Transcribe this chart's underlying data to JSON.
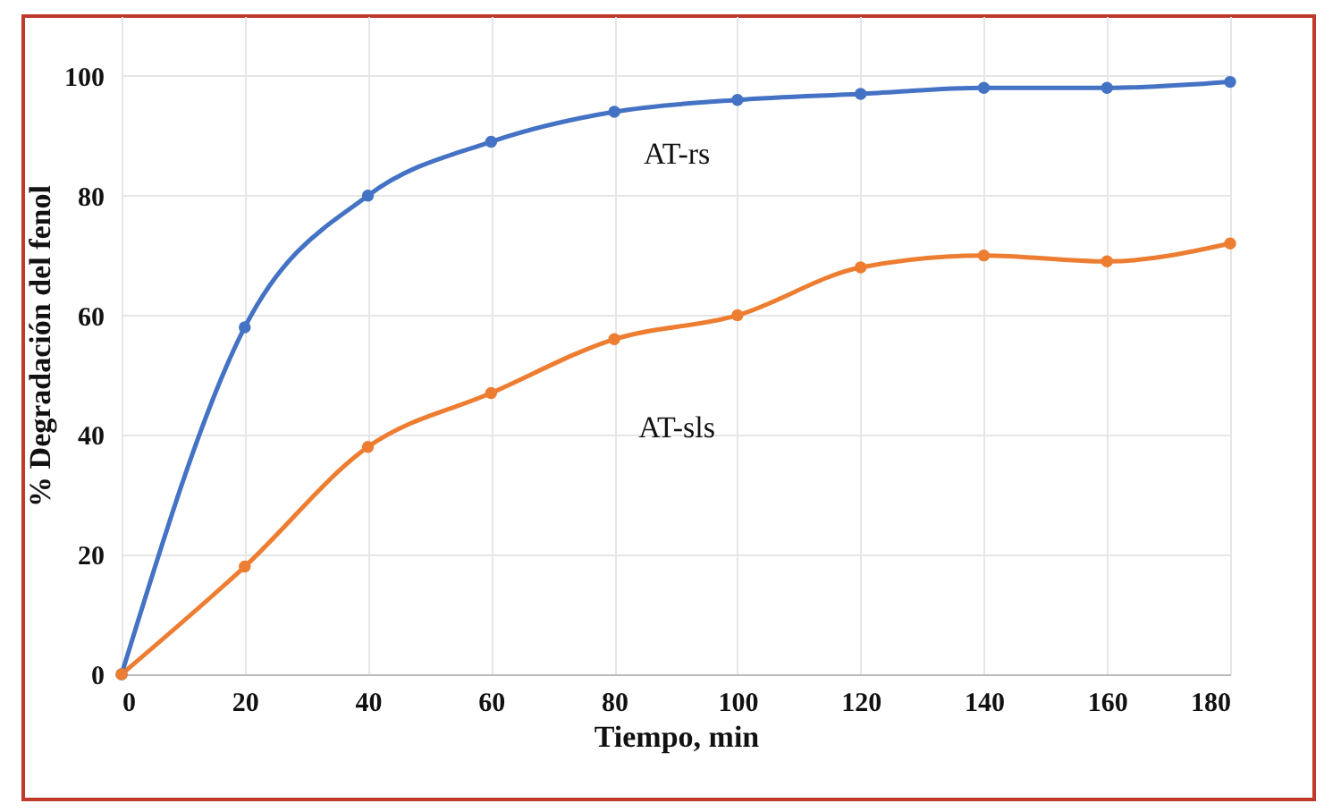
{
  "chart_data": {
    "type": "line",
    "xlabel": "Tiempo, min",
    "ylabel": "%   Degradación del fenol",
    "x": [
      0,
      20,
      40,
      60,
      80,
      100,
      120,
      140,
      160,
      180
    ],
    "series": [
      {
        "name": "AT-rs",
        "color": "#4472c4",
        "values": [
          0,
          58,
          80,
          89,
          94,
          96,
          97,
          98,
          98,
          99
        ]
      },
      {
        "name": "AT-sls",
        "color": "#ed7d31",
        "values": [
          0,
          18,
          38,
          47,
          56,
          60,
          68,
          70,
          69,
          72
        ]
      }
    ],
    "xlim": [
      0,
      180
    ],
    "xticks": [
      0,
      20,
      40,
      60,
      80,
      100,
      120,
      140,
      160,
      180
    ],
    "ylim": [
      0,
      110
    ],
    "yticks": [
      0,
      20,
      40,
      60,
      80,
      100
    ],
    "grid": true,
    "marker": "circle",
    "line_style": "solid",
    "legend": false
  }
}
